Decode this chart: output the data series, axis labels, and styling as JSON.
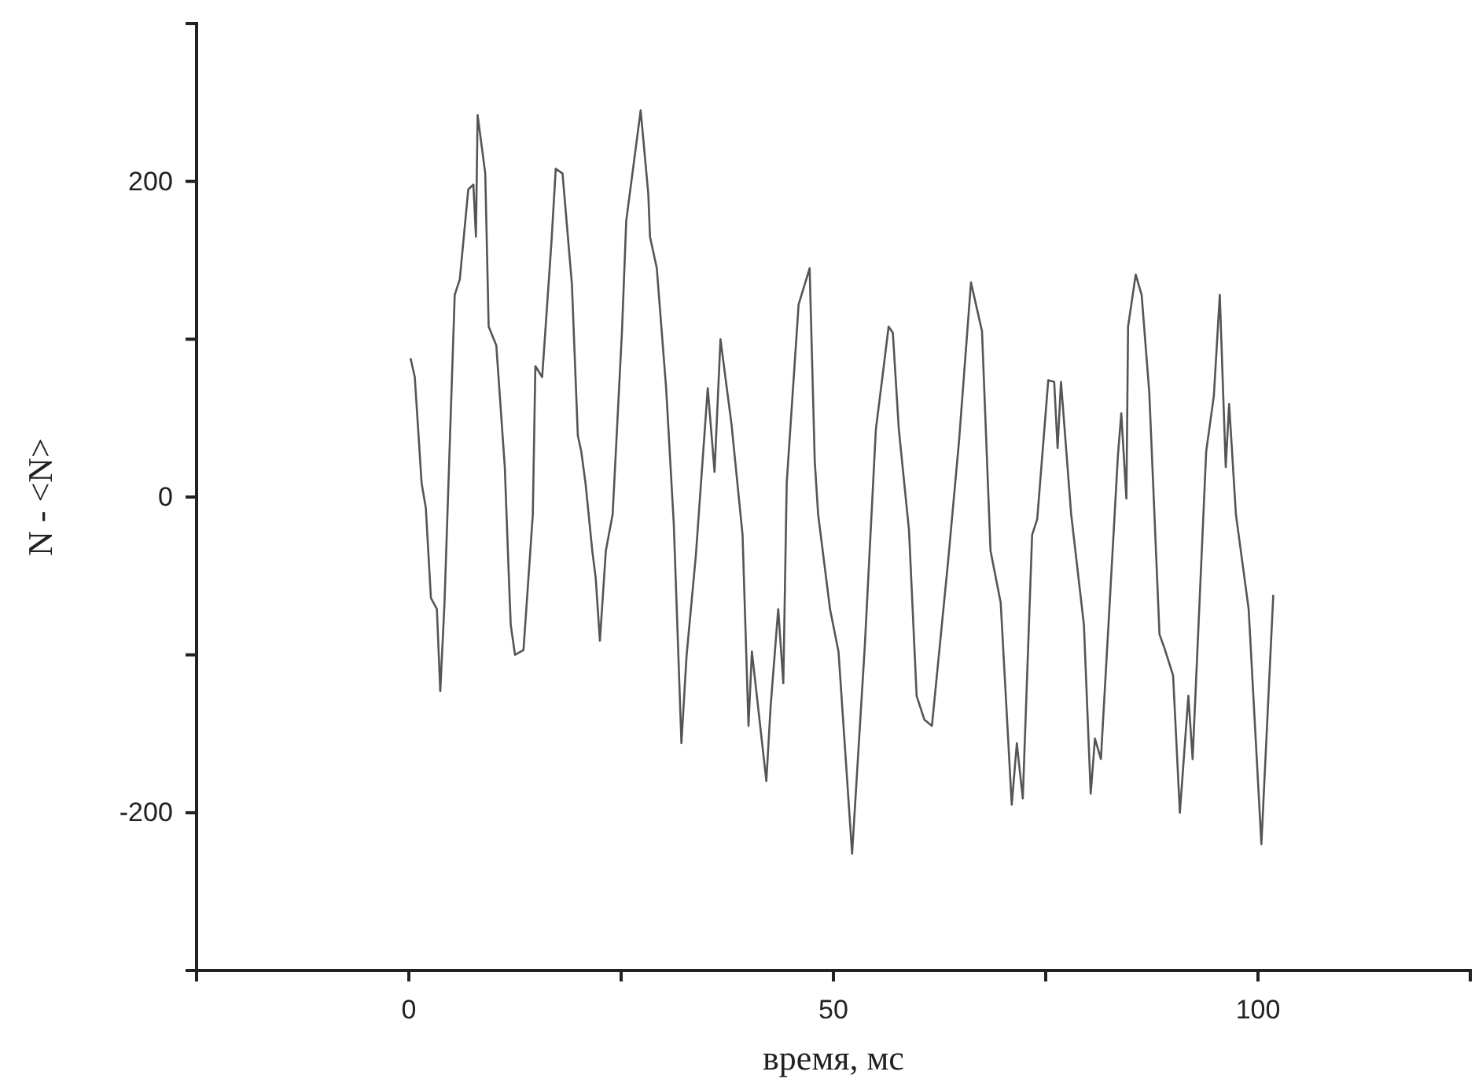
{
  "chart_data": {
    "type": "line",
    "xlabel": "время, мс",
    "ylabel": "N - <N>",
    "xlim": [
      -25,
      125
    ],
    "xticks": [
      {
        "value": -25,
        "label": null
      },
      0,
      {
        "value": 25,
        "label": null
      },
      50,
      {
        "value": 75,
        "label": null
      },
      100,
      {
        "value": 125,
        "label": null
      }
    ],
    "ylim": [
      -300,
      300
    ],
    "yticks": [
      -200,
      {
        "value": -100,
        "label": null
      },
      0,
      {
        "value": 100,
        "label": null
      },
      200
    ],
    "grid": false,
    "marker": "none",
    "line_style": "solid",
    "series": [
      {
        "color": "#555555",
        "x": [
          0.2,
          0.7,
          1.5,
          2,
          2.6,
          3.3,
          3.7,
          4.2,
          5.4,
          6,
          7,
          7.6,
          7.9,
          8.1,
          9,
          9.4,
          10.3,
          11.3,
          11.8,
          12,
          12.5,
          13.5,
          14.6,
          14.9,
          15.7,
          16.8,
          17.3,
          18.1,
          19.2,
          19.9,
          20.3,
          20.8,
          21.6,
          22,
          22.5,
          23.2,
          24,
          25.1,
          25.6,
          27.3,
          28.2,
          28.4,
          29.2,
          30.3,
          31.2,
          32.1,
          32.7,
          33.8,
          35.2,
          36,
          36.7,
          38,
          39.3,
          40,
          40.4,
          42.1,
          42.6,
          43.5,
          44.1,
          44.5,
          45.9,
          47.2,
          47.8,
          48.2,
          49.6,
          50.6,
          52.2,
          53.7,
          55,
          55.7,
          56.5,
          57,
          57.7,
          58.9,
          59.8,
          60.7,
          61.6,
          63.5,
          64.8,
          66.2,
          67.5,
          68.5,
          69.7,
          71,
          71.6,
          72.3,
          73.4,
          74,
          75.3,
          76,
          76.4,
          76.8,
          78,
          79.5,
          80.3,
          80.8,
          81.5,
          82.6,
          83.5,
          83.9,
          84.5,
          84.7,
          85.6,
          86.3,
          87.2,
          88.4,
          89,
          90,
          90.8,
          91.8,
          92.3,
          93.9,
          94.8,
          95.5,
          96.2,
          96.6,
          97.4,
          98.9,
          100.4,
          101.8
        ],
        "values": [
          88,
          76,
          9,
          -7,
          -64,
          -71,
          -123,
          -67,
          128,
          138,
          195,
          198,
          165,
          242,
          205,
          108,
          96,
          19,
          -54,
          -81,
          -100,
          -97,
          -11,
          83,
          76,
          162,
          208,
          205,
          135,
          39,
          29,
          9,
          -34,
          -51,
          -91,
          -34,
          -11,
          105,
          175,
          245,
          192,
          165,
          145,
          69,
          -17,
          -156,
          -101,
          -37,
          69,
          16,
          100,
          46,
          -24,
          -145,
          -98,
          -180,
          -133,
          -71,
          -118,
          9,
          122,
          145,
          23,
          -11,
          -71,
          -98,
          -226,
          -94,
          43,
          73,
          108,
          104,
          43,
          -21,
          -126,
          -141,
          -145,
          -41,
          36,
          136,
          105,
          -34,
          -67,
          -195,
          -156,
          -191,
          -24,
          -14,
          74,
          73,
          31,
          73,
          -11,
          -81,
          -188,
          -153,
          -166,
          -61,
          26,
          53,
          -1,
          108,
          141,
          128,
          66,
          -87,
          -96,
          -113,
          -200,
          -126,
          -166,
          29,
          64,
          128,
          19,
          59,
          -11,
          -71,
          -220,
          -62
        ]
      }
    ]
  }
}
